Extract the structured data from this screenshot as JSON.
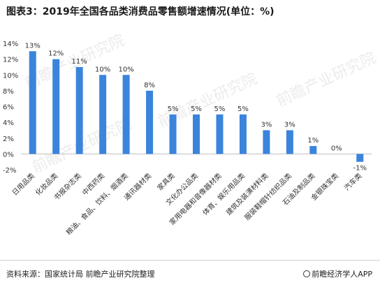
{
  "title": "图表3：2019年全国各品类消费品零售额增速情况(单位：%)",
  "footer": {
    "source": "资料来源：国家统计局 前瞻产业研究院整理",
    "brand": "前瞻经济学人APP",
    "brand_icon": "qianzhan-logo-icon"
  },
  "watermark_text": "前瞻产业研究院",
  "colors": {
    "bar": "#3a84dc",
    "axis": "#bfbfbf",
    "text": "#333333"
  },
  "chart_data": {
    "type": "bar",
    "categories": [
      "日用品类",
      "化妆品类",
      "书报杂志类",
      "中西药类",
      "粮油、食品、饮料、烟酒类",
      "通讯器材类",
      "家具类",
      "文化办公品类",
      "家用电器和音像器材类",
      "体育、娱乐用品类",
      "建筑及装潢材料类",
      "服装鞋帽针纺织品类",
      "石油及制品类",
      "金银珠宝类",
      "汽车类"
    ],
    "values": [
      13,
      12,
      11,
      10,
      10,
      8,
      5,
      5,
      5,
      5,
      3,
      3,
      1,
      0,
      -1
    ],
    "value_labels": [
      "13%",
      "12%",
      "11%",
      "10%",
      "10%",
      "8%",
      "5%",
      "5%",
      "5%",
      "5%",
      "3%",
      "3%",
      "1%",
      "0%",
      "-1%"
    ],
    "yticks": [
      "-2%",
      "0%",
      "2%",
      "4%",
      "6%",
      "8%",
      "10%",
      "12%",
      "14%"
    ],
    "ytick_values": [
      -2,
      0,
      2,
      4,
      6,
      8,
      10,
      12,
      14
    ],
    "ylim": [
      -2,
      14
    ],
    "grid": false,
    "legend": "none"
  }
}
